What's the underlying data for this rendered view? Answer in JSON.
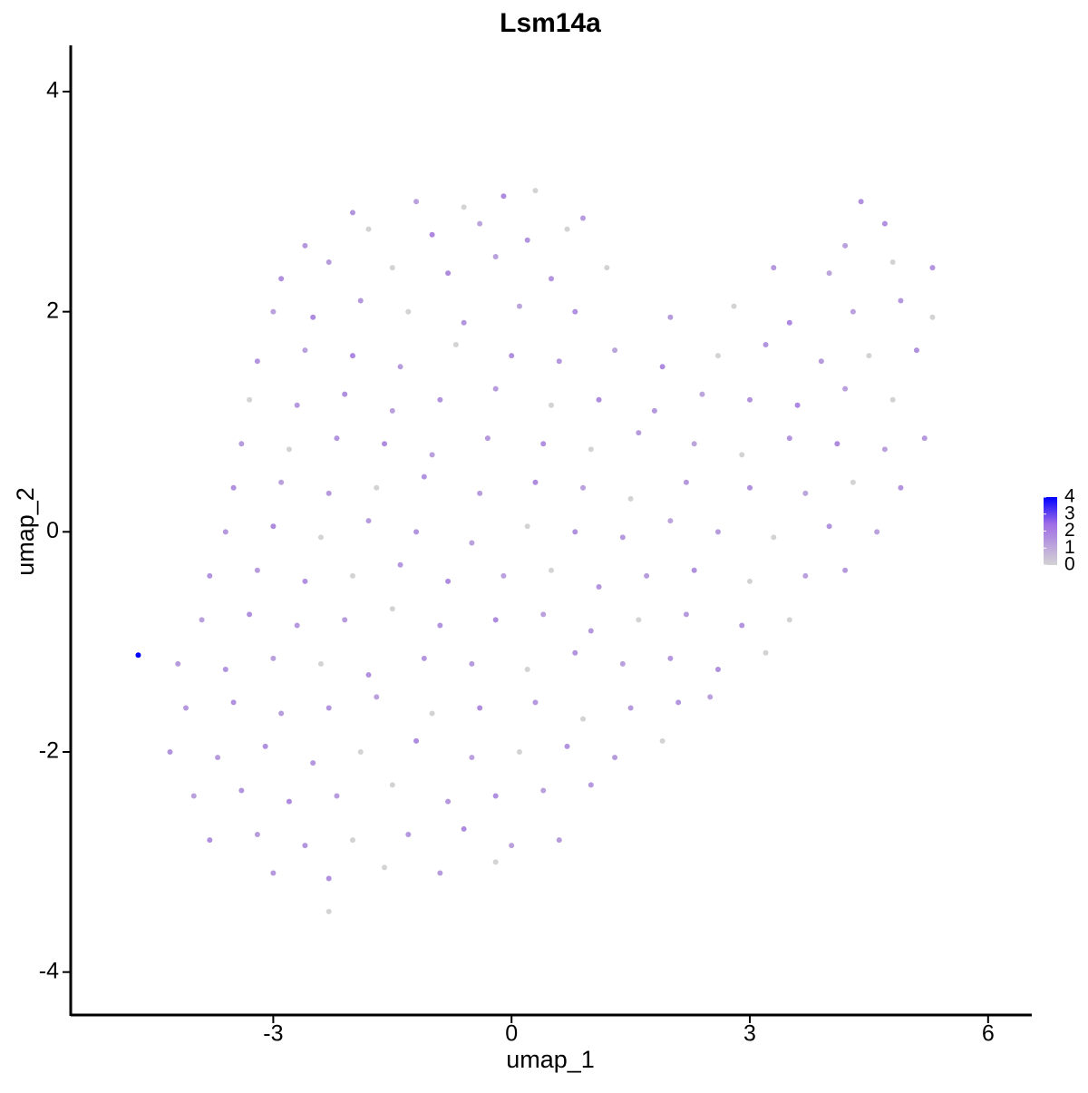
{
  "chart_data": {
    "type": "scatter",
    "title": "Lsm14a",
    "xlabel": "umap_1",
    "ylabel": "umap_2",
    "xlim": [
      -5.55,
      6.55
    ],
    "ylim": [
      -4.39,
      4.42
    ],
    "xticks": [
      -3,
      0,
      3,
      6
    ],
    "yticks": [
      -4,
      -2,
      0,
      2,
      4
    ],
    "color_low": "#d3d3d3",
    "color_high": "#0000ff",
    "clim": [
      0,
      4
    ],
    "cticks": [
      0,
      1,
      2,
      3,
      4
    ],
    "x": [
      -2.0,
      -1.2,
      -0.6,
      -0.1,
      0.3,
      0.9,
      4.4,
      -2.6,
      -1.8,
      -1.0,
      -0.4,
      0.2,
      0.7,
      4.2,
      4.7,
      -2.9,
      -2.3,
      -1.5,
      -0.8,
      -0.2,
      0.5,
      1.2,
      3.3,
      4.0,
      4.8,
      5.3,
      -3.0,
      -2.5,
      -1.9,
      -1.3,
      -0.6,
      0.1,
      0.8,
      2.0,
      2.8,
      3.5,
      4.3,
      4.9,
      5.3,
      -3.2,
      -2.6,
      -2.0,
      -1.4,
      -0.7,
      0,
      0.6,
      1.3,
      1.9,
      2.6,
      3.2,
      3.9,
      4.5,
      5.1,
      -3.3,
      -2.7,
      -2.1,
      -1.5,
      -0.9,
      -0.2,
      0.5,
      1.1,
      1.8,
      2.4,
      3.0,
      3.6,
      4.2,
      4.8,
      -3.4,
      -2.8,
      -2.2,
      -1.6,
      -1.0,
      -0.3,
      0.4,
      1.0,
      1.6,
      2.3,
      2.9,
      3.5,
      4.1,
      4.7,
      5.2,
      -3.5,
      -2.9,
      -2.3,
      -1.7,
      -1.1,
      -0.4,
      0.3,
      0.9,
      1.5,
      2.2,
      3.0,
      3.7,
      4.3,
      4.9,
      -3.6,
      -3.0,
      -2.4,
      -1.8,
      -1.2,
      -0.5,
      0.2,
      0.8,
      1.4,
      2.0,
      2.6,
      3.3,
      4.0,
      4.6,
      -3.8,
      -3.2,
      -2.6,
      -2.0,
      -1.4,
      -0.8,
      -0.1,
      0.5,
      1.1,
      1.7,
      2.3,
      3.0,
      3.7,
      4.2,
      -3.9,
      -3.3,
      -2.7,
      -2.1,
      -1.5,
      -0.9,
      -0.2,
      0.4,
      1.0,
      1.6,
      2.2,
      2.9,
      3.5,
      -4.7,
      -4.2,
      -3.6,
      -3.0,
      -2.4,
      -1.8,
      -1.1,
      -0.5,
      0.2,
      0.8,
      1.4,
      2.0,
      2.6,
      3.2,
      -4.1,
      -3.5,
      -2.9,
      -2.3,
      -1.7,
      -1.0,
      -0.4,
      0.3,
      0.9,
      1.5,
      2.1,
      2.5,
      -4.3,
      -3.7,
      -3.1,
      -2.5,
      -1.9,
      -1.2,
      -0.5,
      0.1,
      0.7,
      1.3,
      1.9,
      -4.0,
      -3.4,
      -2.8,
      -2.2,
      -1.5,
      -0.8,
      -0.2,
      0.4,
      1.0,
      -3.8,
      -3.2,
      -2.6,
      -2.0,
      -1.3,
      -0.6,
      0.0,
      0.6,
      -3.0,
      -2.3,
      -1.6,
      -0.9,
      -0.2,
      -2.3
    ],
    "y": [
      2.9,
      3.0,
      2.95,
      3.05,
      3.1,
      2.85,
      3.0,
      2.6,
      2.75,
      2.7,
      2.8,
      2.65,
      2.75,
      2.6,
      2.8,
      2.3,
      2.45,
      2.4,
      2.35,
      2.5,
      2.3,
      2.4,
      2.4,
      2.35,
      2.45,
      2.4,
      2.0,
      1.95,
      2.1,
      2.0,
      1.9,
      2.05,
      2.0,
      1.95,
      2.05,
      1.9,
      2.0,
      2.1,
      1.95,
      1.55,
      1.65,
      1.6,
      1.5,
      1.7,
      1.6,
      1.55,
      1.65,
      1.5,
      1.6,
      1.7,
      1.55,
      1.6,
      1.65,
      1.2,
      1.15,
      1.25,
      1.1,
      1.2,
      1.3,
      1.15,
      1.2,
      1.1,
      1.25,
      1.2,
      1.15,
      1.3,
      1.2,
      0.8,
      0.75,
      0.85,
      0.8,
      0.7,
      0.85,
      0.8,
      0.75,
      0.9,
      0.8,
      0.7,
      0.85,
      0.8,
      0.75,
      0.85,
      0.4,
      0.45,
      0.35,
      0.4,
      0.5,
      0.35,
      0.45,
      0.4,
      0.3,
      0.45,
      0.4,
      0.35,
      0.45,
      0.4,
      0.0,
      0.05,
      -0.05,
      0.1,
      0.0,
      -0.1,
      0.05,
      0.0,
      -0.05,
      0.1,
      0.0,
      -0.05,
      0.05,
      0.0,
      -0.4,
      -0.35,
      -0.45,
      -0.4,
      -0.3,
      -0.45,
      -0.4,
      -0.35,
      -0.5,
      -0.4,
      -0.35,
      -0.45,
      -0.4,
      -0.35,
      -0.8,
      -0.75,
      -0.85,
      -0.8,
      -0.7,
      -0.85,
      -0.8,
      -0.75,
      -0.9,
      -0.8,
      -0.75,
      -0.85,
      -0.8,
      -1.12,
      -1.2,
      -1.25,
      -1.15,
      -1.2,
      -1.3,
      -1.15,
      -1.2,
      -1.25,
      -1.1,
      -1.2,
      -1.15,
      -1.25,
      -1.1,
      -1.6,
      -1.55,
      -1.65,
      -1.6,
      -1.5,
      -1.65,
      -1.6,
      -1.55,
      -1.7,
      -1.6,
      -1.55,
      -1.5,
      -2.0,
      -2.05,
      -1.95,
      -2.1,
      -2.0,
      -1.9,
      -2.05,
      -2.0,
      -1.95,
      -2.05,
      -1.9,
      -2.4,
      -2.35,
      -2.45,
      -2.4,
      -2.3,
      -2.45,
      -2.4,
      -2.35,
      -2.3,
      -2.8,
      -2.75,
      -2.85,
      -2.8,
      -2.75,
      -2.7,
      -2.85,
      -2.8,
      -3.1,
      -3.15,
      -3.05,
      -3.1,
      -3.0,
      -3.45
    ],
    "values": [
      1.5,
      1.2,
      0,
      1.7,
      0,
      1.3,
      1.6,
      1.4,
      0,
      1.8,
      1.1,
      1.5,
      0,
      1.2,
      1.6,
      1.6,
      1.3,
      0,
      1.7,
      1.2,
      1.5,
      0,
      1.4,
      1.1,
      0,
      1.5,
      1.2,
      1.7,
      1.4,
      0,
      1.5,
      1.1,
      1.6,
      1.3,
      0,
      1.8,
      1.2,
      1.4,
      0,
      1.5,
      1.2,
      1.8,
      1.3,
      0,
      1.6,
      1.4,
      1.1,
      1.7,
      0,
      1.5,
      1.3,
      0,
      1.6,
      0,
      1.4,
      1.6,
      1.2,
      1.5,
      1.3,
      0,
      1.7,
      1.4,
      1.1,
      1.5,
      1.8,
      1.2,
      0,
      1.3,
      0,
      1.5,
      1.7,
      1.2,
      1.4,
      1.6,
      0,
      1.3,
      1.1,
      0,
      1.5,
      1.7,
      1.2,
      1.4,
      1.6,
      1.2,
      1.4,
      0,
      1.5,
      1.3,
      1.7,
      1.2,
      0,
      1.4,
      1.6,
      1.1,
      0,
      1.5,
      1.4,
      1.7,
      0,
      1.3,
      1.5,
      1.2,
      0,
      1.6,
      1.4,
      1.1,
      1.3,
      0,
      1.5,
      1.2,
      1.5,
      1.3,
      1.6,
      0,
      1.4,
      1.7,
      1.2,
      0,
      1.5,
      1.3,
      1.6,
      0,
      1.2,
      1.4,
      1.2,
      1.6,
      1.4,
      1.3,
      0,
      1.5,
      1.7,
      1.2,
      1.4,
      0,
      1.3,
      1.5,
      0,
      4.0,
      1.3,
      1.5,
      1.2,
      0,
      1.6,
      1.4,
      1.3,
      0,
      1.5,
      1.2,
      1.4,
      1.6,
      0,
      1.4,
      1.6,
      1.3,
      1.5,
      1.2,
      0,
      1.7,
      1.4,
      0,
      1.3,
      1.5,
      1.2,
      1.5,
      1.3,
      1.6,
      1.4,
      0,
      1.7,
      1.2,
      0,
      1.5,
      1.3,
      0,
      1.2,
      1.5,
      1.7,
      1.3,
      0,
      1.4,
      1.6,
      1.2,
      1.4,
      1.6,
      1.3,
      1.5,
      0,
      1.4,
      1.7,
      1.2,
      1.3,
      1.4,
      1.6,
      0,
      1.3,
      0,
      0
    ]
  }
}
